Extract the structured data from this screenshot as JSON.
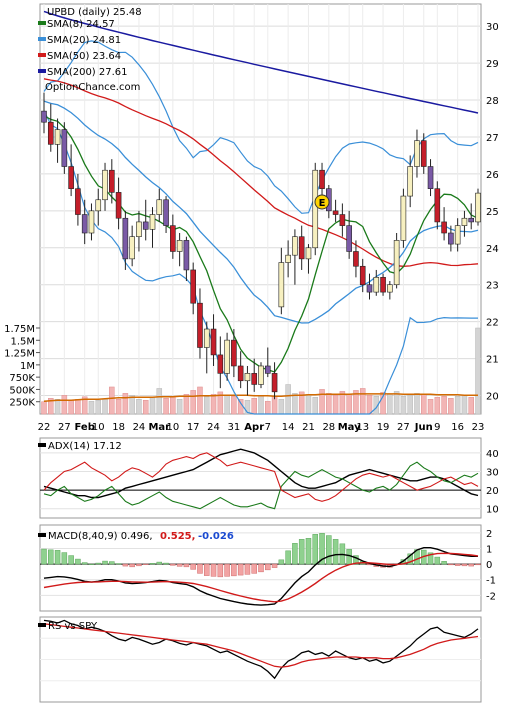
{
  "chart_data": [
    {
      "type": "candlestick",
      "ticker_label": "UPBD (daily) 25.48",
      "brand": "OptionChance.com",
      "legend": [
        {
          "label": "SMA(8) 24.57",
          "color": "#1a7a1a"
        },
        {
          "label": "SMA(20) 24.81",
          "color": "#3a8fd8"
        },
        {
          "label": "SMA(50) 23.64",
          "color": "#d11a1a"
        },
        {
          "label": "SMA(200) 27.61",
          "color": "#1a1aa0"
        }
      ],
      "price_ticks": [
        "30",
        "29",
        "28",
        "27",
        "26",
        "25",
        "24",
        "23",
        "22",
        "21",
        "20"
      ],
      "price_range": [
        19.5,
        30.6
      ],
      "volume_ticks": [
        "1.75M",
        "1.5M",
        "1.25M",
        "1M",
        "750K",
        "500K",
        "250K"
      ],
      "volume_range": [
        0,
        1.75
      ],
      "x_tick_labels": [
        "22",
        "27",
        "Feb",
        "10",
        "18",
        "24",
        "Mar",
        "10",
        "17",
        "24",
        "31",
        "Apr",
        "7",
        "14",
        "21",
        "28",
        "May",
        "13",
        "19",
        "27",
        "Jun",
        "9",
        "16",
        "23"
      ],
      "earnings_marker": "E",
      "candles": [
        {
          "o": 27.7,
          "h": 28.2,
          "l": 27.1,
          "c": 27.4
        },
        {
          "o": 27.4,
          "h": 27.9,
          "l": 26.6,
          "c": 26.8
        },
        {
          "o": 26.8,
          "h": 27.5,
          "l": 26.3,
          "c": 27.2
        },
        {
          "o": 27.2,
          "h": 27.4,
          "l": 26.0,
          "c": 26.2
        },
        {
          "o": 26.2,
          "h": 26.8,
          "l": 25.4,
          "c": 25.6
        },
        {
          "o": 25.6,
          "h": 26.0,
          "l": 24.6,
          "c": 24.9
        },
        {
          "o": 24.9,
          "h": 25.3,
          "l": 24.1,
          "c": 24.4
        },
        {
          "o": 24.4,
          "h": 25.2,
          "l": 24.2,
          "c": 25.0
        },
        {
          "o": 25.0,
          "h": 25.6,
          "l": 24.6,
          "c": 25.3
        },
        {
          "o": 25.3,
          "h": 26.3,
          "l": 25.0,
          "c": 26.1
        },
        {
          "o": 26.1,
          "h": 26.4,
          "l": 25.2,
          "c": 25.5
        },
        {
          "o": 25.5,
          "h": 25.9,
          "l": 24.5,
          "c": 24.8
        },
        {
          "o": 24.8,
          "h": 25.0,
          "l": 23.4,
          "c": 23.7
        },
        {
          "o": 23.7,
          "h": 24.6,
          "l": 23.5,
          "c": 24.3
        },
        {
          "o": 24.3,
          "h": 25.0,
          "l": 23.9,
          "c": 24.7
        },
        {
          "o": 24.7,
          "h": 25.3,
          "l": 24.2,
          "c": 24.5
        },
        {
          "o": 24.5,
          "h": 25.1,
          "l": 24.0,
          "c": 24.9
        },
        {
          "o": 24.9,
          "h": 25.6,
          "l": 24.7,
          "c": 25.3
        },
        {
          "o": 25.3,
          "h": 25.4,
          "l": 24.4,
          "c": 24.6
        },
        {
          "o": 24.6,
          "h": 24.9,
          "l": 23.7,
          "c": 23.9
        },
        {
          "o": 23.9,
          "h": 24.4,
          "l": 23.5,
          "c": 24.2
        },
        {
          "o": 24.2,
          "h": 24.3,
          "l": 23.1,
          "c": 23.4
        },
        {
          "o": 23.4,
          "h": 23.6,
          "l": 22.2,
          "c": 22.5
        },
        {
          "o": 22.5,
          "h": 22.9,
          "l": 21.0,
          "c": 21.3
        },
        {
          "o": 21.3,
          "h": 22.0,
          "l": 20.6,
          "c": 21.8
        },
        {
          "o": 21.8,
          "h": 22.2,
          "l": 20.8,
          "c": 21.1
        },
        {
          "o": 21.1,
          "h": 21.6,
          "l": 20.2,
          "c": 20.6
        },
        {
          "o": 20.6,
          "h": 21.7,
          "l": 20.4,
          "c": 21.5
        },
        {
          "o": 21.5,
          "h": 21.8,
          "l": 20.5,
          "c": 20.8
        },
        {
          "o": 20.8,
          "h": 21.2,
          "l": 20.2,
          "c": 20.4
        },
        {
          "o": 20.4,
          "h": 20.8,
          "l": 20.0,
          "c": 20.6
        },
        {
          "o": 20.6,
          "h": 21.0,
          "l": 20.1,
          "c": 20.3
        },
        {
          "o": 20.3,
          "h": 20.9,
          "l": 20.2,
          "c": 20.8
        },
        {
          "o": 20.8,
          "h": 21.3,
          "l": 20.5,
          "c": 20.6
        },
        {
          "o": 20.6,
          "h": 20.9,
          "l": 19.9,
          "c": 20.1
        },
        {
          "o": 22.4,
          "h": 24.0,
          "l": 22.2,
          "c": 23.6
        },
        {
          "o": 23.6,
          "h": 24.2,
          "l": 23.2,
          "c": 23.8
        },
        {
          "o": 23.8,
          "h": 24.5,
          "l": 23.0,
          "c": 24.3
        },
        {
          "o": 24.3,
          "h": 24.6,
          "l": 23.4,
          "c": 23.7
        },
        {
          "o": 23.7,
          "h": 24.1,
          "l": 23.3,
          "c": 24.0
        },
        {
          "o": 24.0,
          "h": 26.3,
          "l": 23.8,
          "c": 26.1
        },
        {
          "o": 26.1,
          "h": 26.3,
          "l": 25.4,
          "c": 25.6
        },
        {
          "o": 25.6,
          "h": 25.7,
          "l": 24.8,
          "c": 25.0
        },
        {
          "o": 25.0,
          "h": 25.3,
          "l": 24.7,
          "c": 24.9
        },
        {
          "o": 24.9,
          "h": 25.2,
          "l": 24.3,
          "c": 24.6
        },
        {
          "o": 24.6,
          "h": 25.0,
          "l": 23.7,
          "c": 23.9
        },
        {
          "o": 23.9,
          "h": 24.2,
          "l": 23.2,
          "c": 23.5
        },
        {
          "o": 23.5,
          "h": 23.7,
          "l": 22.8,
          "c": 23.0
        },
        {
          "o": 23.0,
          "h": 23.3,
          "l": 22.6,
          "c": 22.8
        },
        {
          "o": 22.8,
          "h": 23.4,
          "l": 22.7,
          "c": 23.2
        },
        {
          "o": 23.2,
          "h": 23.3,
          "l": 22.7,
          "c": 22.8
        },
        {
          "o": 22.8,
          "h": 23.1,
          "l": 22.6,
          "c": 23.0
        },
        {
          "o": 23.0,
          "h": 24.4,
          "l": 22.9,
          "c": 24.2
        },
        {
          "o": 24.2,
          "h": 25.6,
          "l": 24.0,
          "c": 25.4
        },
        {
          "o": 25.4,
          "h": 26.5,
          "l": 25.1,
          "c": 26.2
        },
        {
          "o": 26.2,
          "h": 27.2,
          "l": 25.9,
          "c": 26.9
        },
        {
          "o": 26.9,
          "h": 27.1,
          "l": 26.0,
          "c": 26.2
        },
        {
          "o": 26.2,
          "h": 26.4,
          "l": 25.4,
          "c": 25.6
        },
        {
          "o": 25.6,
          "h": 25.8,
          "l": 24.5,
          "c": 24.7
        },
        {
          "o": 24.7,
          "h": 25.1,
          "l": 24.2,
          "c": 24.4
        },
        {
          "o": 24.4,
          "h": 24.6,
          "l": 23.9,
          "c": 24.1
        },
        {
          "o": 24.1,
          "h": 24.8,
          "l": 23.9,
          "c": 24.6
        },
        {
          "o": 24.6,
          "h": 25.0,
          "l": 24.3,
          "c": 24.8
        },
        {
          "o": 24.8,
          "h": 25.2,
          "l": 24.5,
          "c": 24.7
        },
        {
          "o": 24.7,
          "h": 25.6,
          "l": 24.6,
          "c": 25.48
        }
      ],
      "volume_millions": [
        0.25,
        0.32,
        0.3,
        0.38,
        0.28,
        0.3,
        0.35,
        0.26,
        0.28,
        0.3,
        0.55,
        0.3,
        0.42,
        0.38,
        0.3,
        0.28,
        0.35,
        0.52,
        0.32,
        0.36,
        0.3,
        0.4,
        0.48,
        0.55,
        0.35,
        0.4,
        0.45,
        0.38,
        0.36,
        0.3,
        0.28,
        0.32,
        0.38,
        0.26,
        0.36,
        0.3,
        0.6,
        0.42,
        0.45,
        0.4,
        0.34,
        0.5,
        0.42,
        0.38,
        0.46,
        0.4,
        0.48,
        0.52,
        0.38,
        0.36,
        0.44,
        0.4,
        0.46,
        0.36,
        0.38,
        0.42,
        0.4,
        0.3,
        0.34,
        0.36,
        0.32,
        0.36,
        0.38,
        0.34,
        1.75
      ],
      "volume_sma": [
        0.26,
        0.27,
        0.28,
        0.28,
        0.28,
        0.29,
        0.3,
        0.3,
        0.3,
        0.31,
        0.32,
        0.33,
        0.33,
        0.34,
        0.34,
        0.34,
        0.34,
        0.35,
        0.35,
        0.35,
        0.36,
        0.36,
        0.36,
        0.37,
        0.37,
        0.37,
        0.38,
        0.38,
        0.38,
        0.38,
        0.38,
        0.37,
        0.37,
        0.37,
        0.36,
        0.36,
        0.37,
        0.38,
        0.38,
        0.39,
        0.39,
        0.4,
        0.4,
        0.4,
        0.4,
        0.4,
        0.41,
        0.41,
        0.41,
        0.41,
        0.41,
        0.41,
        0.41,
        0.4,
        0.4,
        0.4,
        0.4,
        0.4,
        0.39,
        0.39,
        0.39,
        0.39,
        0.38,
        0.38,
        0.38
      ]
    },
    {
      "type": "line",
      "label": "ADX(14) 17.12",
      "y_ticks": [
        "40",
        "30",
        "20",
        "10"
      ],
      "y_range": [
        5,
        48
      ],
      "reference_line": 20,
      "series": [
        {
          "color": "#000000",
          "values": [
            22,
            21,
            20,
            19,
            18,
            17,
            17,
            16,
            16,
            17,
            18,
            19,
            21,
            22,
            23,
            24,
            25,
            26,
            27,
            28,
            29,
            30,
            31,
            33,
            35,
            37,
            39,
            40,
            41,
            42,
            41,
            40,
            38,
            36,
            33,
            30,
            27,
            24,
            22,
            21,
            21,
            22,
            23,
            24,
            26,
            28,
            29,
            30,
            31,
            30,
            29,
            28,
            27,
            26,
            25,
            25,
            26,
            27,
            27,
            26,
            24,
            22,
            20,
            18,
            17.12
          ]
        },
        {
          "color": "#1a7a1a",
          "values": [
            18,
            17,
            20,
            22,
            18,
            16,
            14,
            15,
            17,
            20,
            22,
            18,
            14,
            12,
            13,
            15,
            17,
            19,
            16,
            14,
            13,
            12,
            11,
            10,
            12,
            14,
            16,
            14,
            12,
            11,
            11,
            12,
            13,
            11,
            10,
            22,
            26,
            30,
            28,
            27,
            29,
            31,
            29,
            27,
            26,
            24,
            22,
            20,
            19,
            21,
            22,
            20,
            23,
            28,
            33,
            35,
            32,
            30,
            27,
            25,
            24,
            26,
            28,
            27,
            29
          ]
        },
        {
          "color": "#d11a1a",
          "values": [
            20,
            24,
            27,
            30,
            31,
            33,
            35,
            32,
            30,
            28,
            25,
            27,
            30,
            32,
            31,
            29,
            27,
            30,
            34,
            36,
            37,
            38,
            37,
            39,
            40,
            38,
            36,
            33,
            34,
            35,
            34,
            33,
            32,
            31,
            30,
            20,
            18,
            16,
            17,
            18,
            15,
            14,
            15,
            17,
            20,
            23,
            26,
            28,
            29,
            28,
            27,
            28,
            26,
            24,
            22,
            20,
            21,
            22,
            24,
            26,
            27,
            25,
            23,
            24,
            22
          ]
        }
      ]
    },
    {
      "type": "line",
      "label": "MACD(8,40,9) 0.496,",
      "values_text": [
        {
          "text": "0.525,",
          "color": "#d11a1a"
        },
        {
          "text": "-0.026",
          "color": "#1a4ad1"
        }
      ],
      "y_ticks": [
        "2",
        "1",
        "0",
        "-1",
        "-2"
      ],
      "y_range": [
        -3.0,
        2.5
      ],
      "series": [
        {
          "color": "#000000",
          "values": [
            -0.9,
            -0.85,
            -0.8,
            -0.82,
            -0.88,
            -0.98,
            -1.1,
            -1.15,
            -1.1,
            -1.0,
            -1.0,
            -1.08,
            -1.2,
            -1.25,
            -1.22,
            -1.18,
            -1.12,
            -1.05,
            -1.08,
            -1.18,
            -1.25,
            -1.3,
            -1.45,
            -1.7,
            -1.9,
            -2.05,
            -2.2,
            -2.3,
            -2.4,
            -2.48,
            -2.55,
            -2.6,
            -2.62,
            -2.6,
            -2.55,
            -2.2,
            -1.7,
            -1.2,
            -0.8,
            -0.5,
            -0.05,
            0.3,
            0.5,
            0.6,
            0.62,
            0.55,
            0.4,
            0.2,
            0.05,
            -0.05,
            -0.12,
            -0.15,
            -0.05,
            0.2,
            0.55,
            0.9,
            1.05,
            1.05,
            0.95,
            0.8,
            0.65,
            0.6,
            0.55,
            0.5,
            0.496
          ]
        },
        {
          "color": "#d11a1a",
          "values": [
            -1.5,
            -1.42,
            -1.35,
            -1.28,
            -1.22,
            -1.18,
            -1.16,
            -1.15,
            -1.14,
            -1.12,
            -1.1,
            -1.1,
            -1.12,
            -1.14,
            -1.15,
            -1.16,
            -1.15,
            -1.13,
            -1.12,
            -1.13,
            -1.16,
            -1.19,
            -1.24,
            -1.33,
            -1.44,
            -1.56,
            -1.69,
            -1.81,
            -1.93,
            -2.04,
            -2.14,
            -2.23,
            -2.31,
            -2.37,
            -2.41,
            -2.37,
            -2.23,
            -2.03,
            -1.79,
            -1.53,
            -1.24,
            -0.93,
            -0.64,
            -0.39,
            -0.19,
            -0.04,
            0.06,
            0.09,
            0.08,
            0.05,
            0.01,
            -0.02,
            -0.03,
            0.02,
            0.14,
            0.32,
            0.49,
            0.6,
            0.67,
            0.69,
            0.68,
            0.66,
            0.62,
            0.58,
            0.525
          ]
        }
      ]
    },
    {
      "type": "line",
      "label": "RS vs SPY",
      "series": [
        {
          "color": "#000000",
          "values": [
            0.96,
            0.95,
            0.93,
            0.96,
            0.92,
            0.9,
            0.86,
            0.88,
            0.86,
            0.83,
            0.78,
            0.74,
            0.72,
            0.76,
            0.74,
            0.71,
            0.68,
            0.7,
            0.74,
            0.72,
            0.69,
            0.67,
            0.7,
            0.68,
            0.66,
            0.62,
            0.58,
            0.6,
            0.56,
            0.52,
            0.48,
            0.45,
            0.42,
            0.36,
            0.28,
            0.4,
            0.48,
            0.52,
            0.58,
            0.6,
            0.56,
            0.58,
            0.54,
            0.6,
            0.56,
            0.52,
            0.5,
            0.52,
            0.48,
            0.5,
            0.46,
            0.48,
            0.54,
            0.6,
            0.66,
            0.74,
            0.8,
            0.86,
            0.88,
            0.82,
            0.8,
            0.78,
            0.76,
            0.8,
            0.86
          ]
        },
        {
          "color": "#d11a1a",
          "values": [
            0.92,
            0.91,
            0.9,
            0.89,
            0.88,
            0.87,
            0.86,
            0.85,
            0.84,
            0.83,
            0.82,
            0.81,
            0.8,
            0.79,
            0.78,
            0.77,
            0.76,
            0.75,
            0.74,
            0.73,
            0.72,
            0.71,
            0.7,
            0.69,
            0.68,
            0.66,
            0.64,
            0.62,
            0.6,
            0.57,
            0.54,
            0.51,
            0.48,
            0.45,
            0.42,
            0.41,
            0.42,
            0.44,
            0.47,
            0.49,
            0.5,
            0.51,
            0.52,
            0.53,
            0.53,
            0.53,
            0.53,
            0.52,
            0.52,
            0.52,
            0.51,
            0.51,
            0.52,
            0.54,
            0.56,
            0.59,
            0.62,
            0.66,
            0.69,
            0.71,
            0.73,
            0.74,
            0.75,
            0.76,
            0.77
          ]
        }
      ]
    }
  ]
}
